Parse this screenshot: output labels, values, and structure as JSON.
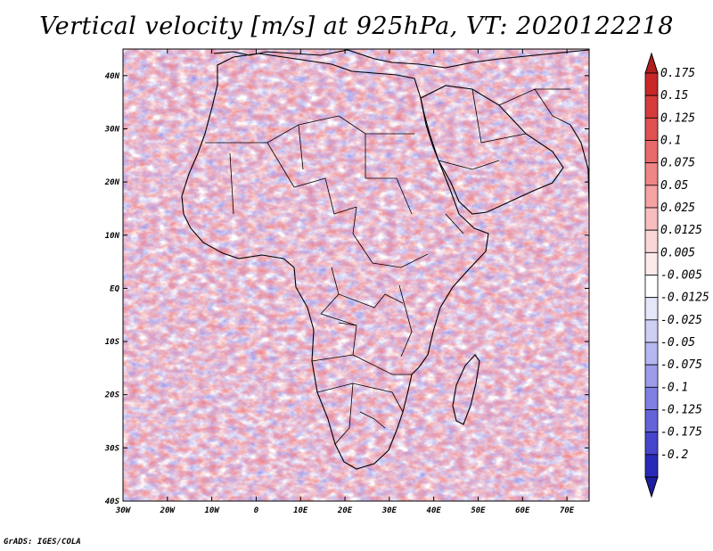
{
  "title": "Vertical velocity [m/s] at 925hPa, VT: 2020122218",
  "footer": "GrADS: IGES/COLA",
  "map": {
    "lon_range": [
      -30,
      75
    ],
    "lat_range": [
      -40,
      45
    ],
    "lat_ticks": [
      {
        "value": 40,
        "label": "40N"
      },
      {
        "value": 30,
        "label": "30N"
      },
      {
        "value": 20,
        "label": "20N"
      },
      {
        "value": 10,
        "label": "10N"
      },
      {
        "value": 0,
        "label": "EQ"
      },
      {
        "value": -10,
        "label": "10S"
      },
      {
        "value": -20,
        "label": "20S"
      },
      {
        "value": -30,
        "label": "30S"
      },
      {
        "value": -40,
        "label": "40S"
      }
    ],
    "lon_ticks": [
      {
        "value": -30,
        "label": "30W"
      },
      {
        "value": -20,
        "label": "20W"
      },
      {
        "value": -10,
        "label": "10W"
      },
      {
        "value": 0,
        "label": "0"
      },
      {
        "value": 10,
        "label": "10E"
      },
      {
        "value": 20,
        "label": "20E"
      },
      {
        "value": 30,
        "label": "30E"
      },
      {
        "value": 40,
        "label": "40E"
      },
      {
        "value": 50,
        "label": "50E"
      },
      {
        "value": 60,
        "label": "60E"
      },
      {
        "value": 70,
        "label": "70E"
      }
    ]
  },
  "colorbar": {
    "levels": [
      {
        "label": "0.175",
        "color": "#c82828"
      },
      {
        "label": "0.15",
        "color": "#d63c3c"
      },
      {
        "label": "0.125",
        "color": "#e05050"
      },
      {
        "label": "0.1",
        "color": "#e86a6a"
      },
      {
        "label": "0.075",
        "color": "#ef8686"
      },
      {
        "label": "0.05",
        "color": "#f4a2a2"
      },
      {
        "label": "0.025",
        "color": "#f8bebe"
      },
      {
        "label": "0.0125",
        "color": "#fbd6d6"
      },
      {
        "label": "0.005",
        "color": "#fde9e9"
      },
      {
        "label": "-0.005",
        "color": "#ffffff"
      },
      {
        "label": "-0.0125",
        "color": "#e6e6fb"
      },
      {
        "label": "-0.025",
        "color": "#cfcff6"
      },
      {
        "label": "-0.05",
        "color": "#b6b6f1"
      },
      {
        "label": "-0.075",
        "color": "#9c9cea"
      },
      {
        "label": "-0.1",
        "color": "#8080e2"
      },
      {
        "label": "-0.125",
        "color": "#6464d8"
      },
      {
        "label": "-0.175",
        "color": "#4646cc"
      },
      {
        "label": "-0.2",
        "color": "#2a2ab8"
      }
    ],
    "top_color": "#b01e1e",
    "bottom_color": "#1e1ea0"
  }
}
